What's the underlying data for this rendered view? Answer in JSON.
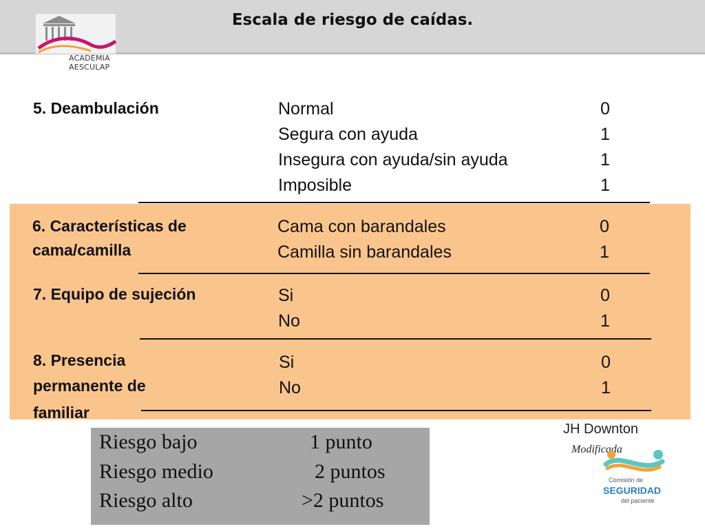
{
  "header": {
    "title": "Escala de riesgo de caídas."
  },
  "logo": {
    "line1": "ACADEMIA",
    "line2": "AESCULAP"
  },
  "sections": [
    {
      "label": [
        "5. Deambulación"
      ],
      "options": [
        "Normal",
        "Segura con ayuda",
        "Insegura con ayuda/sin ayuda",
        "Imposible"
      ],
      "scores": [
        "0",
        "1",
        "1",
        "1"
      ]
    },
    {
      "label": [
        "6. Características de",
        "cama/camilla"
      ],
      "options": [
        "Cama con barandales",
        "Camilla sin barandales"
      ],
      "scores": [
        "0",
        "1"
      ]
    },
    {
      "label": [
        "7. Equipo de sujeción"
      ],
      "options": [
        "Si",
        "No"
      ],
      "scores": [
        "0",
        "1"
      ]
    },
    {
      "label": [
        "8. Presencia",
        "permanente de",
        "familiar"
      ],
      "options": [
        "Si",
        "No"
      ],
      "scores": [
        "0",
        "1"
      ]
    }
  ],
  "risk": [
    {
      "level": "Riesgo bajo",
      "points": "1 punto"
    },
    {
      "level": "Riesgo medio",
      "points": "2 puntos"
    },
    {
      "level": "Riesgo alto",
      "points": ">2 puntos"
    }
  ],
  "author": "JH Downton",
  "modified": "Modificada",
  "commission": {
    "line1": "Comisión de",
    "line2": "SEGURIDAD",
    "line3": "del paciente"
  },
  "colors": {
    "band": "#fac58d",
    "header": "#d6d6d6",
    "risk_box": "#a6a6a6",
    "accent_orange": "#f0a23a",
    "accent_teal": "#5cc6bf",
    "logo_magenta": "#c8156a"
  }
}
